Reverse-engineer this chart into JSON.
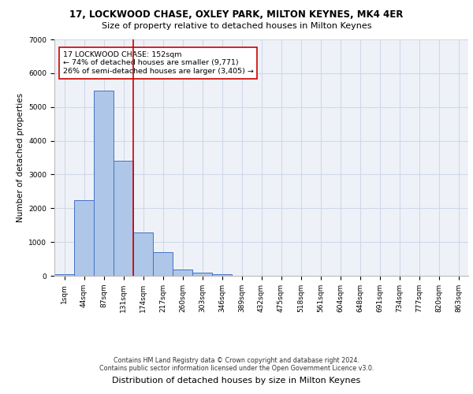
{
  "title_line1": "17, LOCKWOOD CHASE, OXLEY PARK, MILTON KEYNES, MK4 4ER",
  "title_line2": "Size of property relative to detached houses in Milton Keynes",
  "xlabel": "Distribution of detached houses by size in Milton Keynes",
  "ylabel": "Number of detached properties",
  "footnote1": "Contains HM Land Registry data © Crown copyright and database right 2024.",
  "footnote2": "Contains public sector information licensed under the Open Government Licence v3.0.",
  "bar_labels": [
    "1sqm",
    "44sqm",
    "87sqm",
    "131sqm",
    "174sqm",
    "217sqm",
    "260sqm",
    "303sqm",
    "346sqm",
    "389sqm",
    "432sqm",
    "475sqm",
    "518sqm",
    "561sqm",
    "604sqm",
    "648sqm",
    "691sqm",
    "734sqm",
    "777sqm",
    "820sqm",
    "863sqm"
  ],
  "bar_values": [
    50,
    2230,
    5480,
    3400,
    1280,
    700,
    180,
    100,
    55,
    0,
    0,
    0,
    0,
    0,
    0,
    0,
    0,
    0,
    0,
    0,
    0
  ],
  "bar_color": "#aec6e8",
  "bar_edge_color": "#4472c4",
  "grid_color": "#d0d8e8",
  "background_color": "#eef2f8",
  "vline_x": 3.5,
  "vline_color": "#cc0000",
  "annotation_text": "17 LOCKWOOD CHASE: 152sqm\n← 74% of detached houses are smaller (9,771)\n26% of semi-detached houses are larger (3,405) →",
  "annotation_box_color": "white",
  "annotation_box_edge": "#cc0000",
  "ylim": [
    0,
    7000
  ],
  "yticks": [
    0,
    1000,
    2000,
    3000,
    4000,
    5000,
    6000,
    7000
  ],
  "title1_fontsize": 8.5,
  "title2_fontsize": 8.0,
  "ylabel_fontsize": 7.5,
  "xlabel_fontsize": 8.0,
  "tick_fontsize": 6.5,
  "annot_fontsize": 6.8,
  "footnote_fontsize": 5.8
}
